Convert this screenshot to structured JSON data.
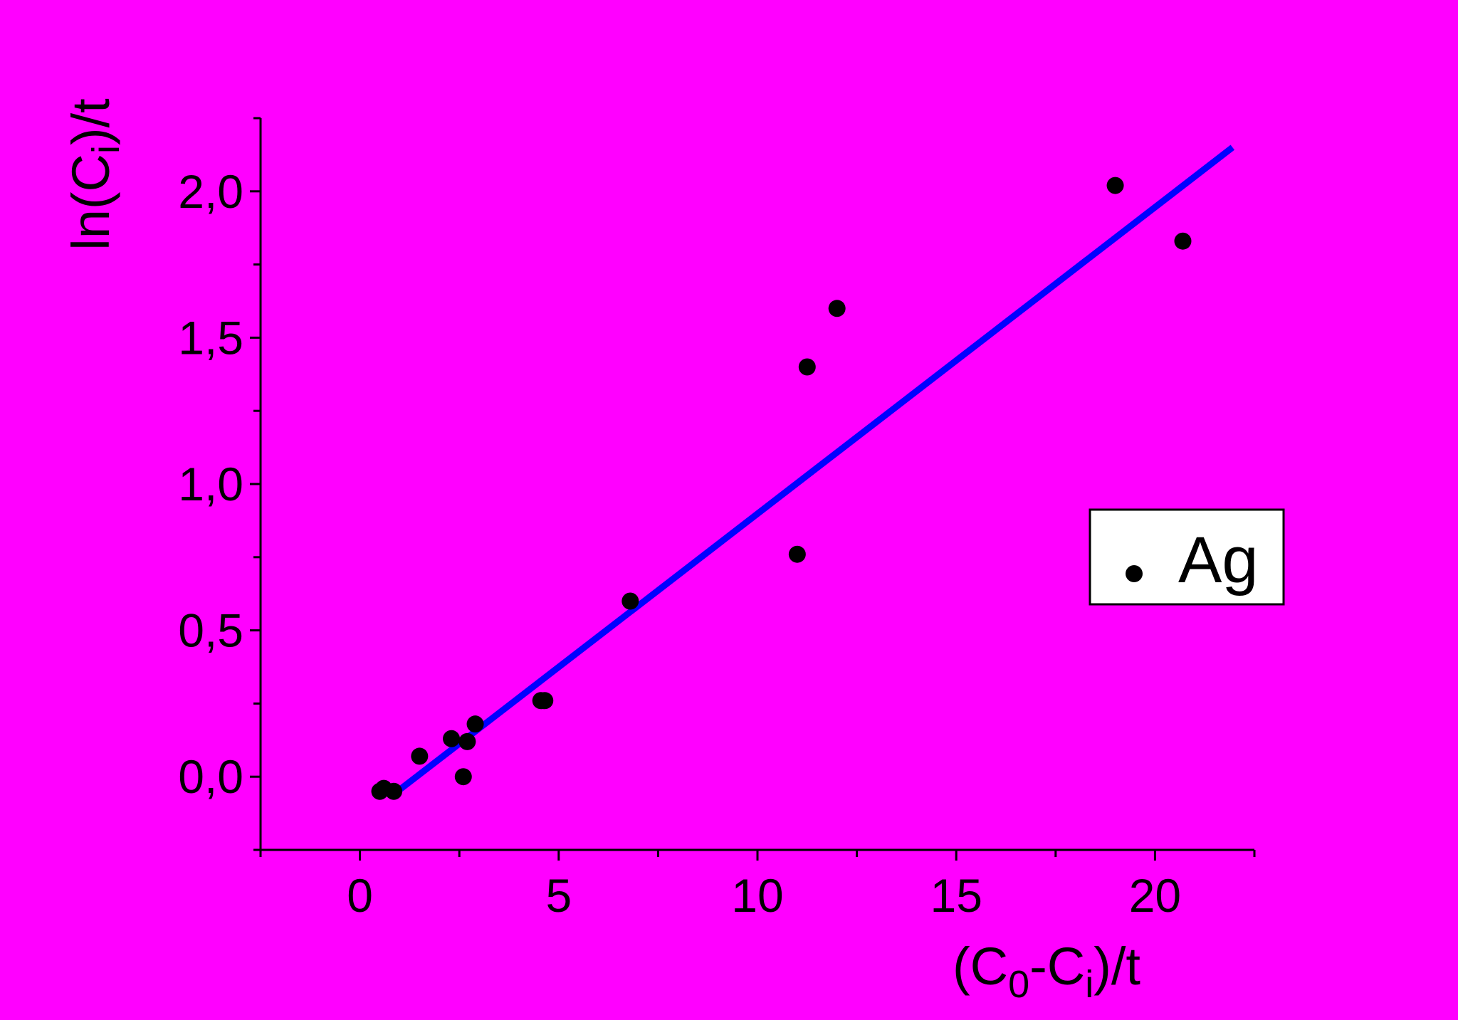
{
  "chart_data": {
    "type": "scatter",
    "background": "#ff00ff",
    "xlabel": {
      "base": "(C",
      "sub1": "0",
      "mid": "-C",
      "sub2": "i",
      "tail": ")/t"
    },
    "ylabel": {
      "base": "ln(C",
      "sub": "i",
      "tail": ")/t"
    },
    "xlim": [
      -2.5,
      22.5
    ],
    "ylim": [
      -0.25,
      2.25
    ],
    "x_ticks": [
      0,
      5,
      10,
      15,
      20
    ],
    "x_tick_labels": [
      "0",
      "5",
      "10",
      "15",
      "20"
    ],
    "y_ticks": [
      0.0,
      0.5,
      1.0,
      1.5,
      2.0
    ],
    "y_tick_labels": [
      "0,0",
      "0,5",
      "1,0",
      "1,5",
      "2,0"
    ],
    "legend_position": "right",
    "series": [
      {
        "name": "Ag",
        "marker": "circle",
        "color": "#000000",
        "points": [
          [
            0.5,
            -0.05
          ],
          [
            0.6,
            -0.04
          ],
          [
            0.85,
            -0.05
          ],
          [
            1.5,
            0.07
          ],
          [
            2.3,
            0.13
          ],
          [
            2.6,
            0.0
          ],
          [
            2.7,
            0.12
          ],
          [
            2.9,
            0.18
          ],
          [
            4.55,
            0.26
          ],
          [
            4.65,
            0.26
          ],
          [
            6.8,
            0.6
          ],
          [
            11.0,
            0.76
          ],
          [
            11.25,
            1.4
          ],
          [
            12.0,
            1.6
          ],
          [
            19.0,
            2.02
          ],
          [
            20.7,
            1.83
          ]
        ]
      }
    ],
    "fit_line": {
      "color": "#0000ff",
      "x": [
        0.85,
        21.95
      ],
      "y": [
        -0.06,
        2.15
      ]
    }
  }
}
